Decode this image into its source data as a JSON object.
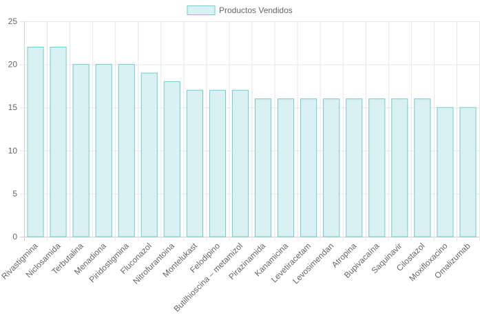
{
  "chart_data": {
    "type": "bar",
    "categories": [
      "Rivastigmina",
      "Niclosamida",
      "Terbutalina",
      "Menadiona",
      "Piridostigmina",
      "Fluconazol",
      "Nitrofurantoina",
      "Montelukast",
      "Felodipino",
      "Butilhioscina – metamizol",
      "Pirazinamida",
      "Kanamicina",
      "Levetiracetam",
      "Levosimendan",
      "Atropina",
      "Bupivacaína",
      "Saquinavir",
      "Cilostazol",
      "Moxifloxacino",
      "Omalizumab"
    ],
    "series": [
      {
        "name": "Productos Vendidos",
        "values": [
          22,
          22,
          20,
          20,
          20,
          19,
          18,
          17,
          17,
          17,
          16,
          16,
          16,
          16,
          16,
          16,
          16,
          16,
          15,
          15
        ]
      }
    ],
    "yticks": [
      "0",
      "5",
      "10",
      "15",
      "20",
      "25"
    ],
    "ylim": [
      0,
      25
    ],
    "grid": true,
    "legend_position": "top",
    "colors": {
      "bar_fill": "#d9f1f2",
      "bar_stroke": "#6fcbcb",
      "grid": "#e6e6e6",
      "axis_text": "#666666"
    }
  }
}
